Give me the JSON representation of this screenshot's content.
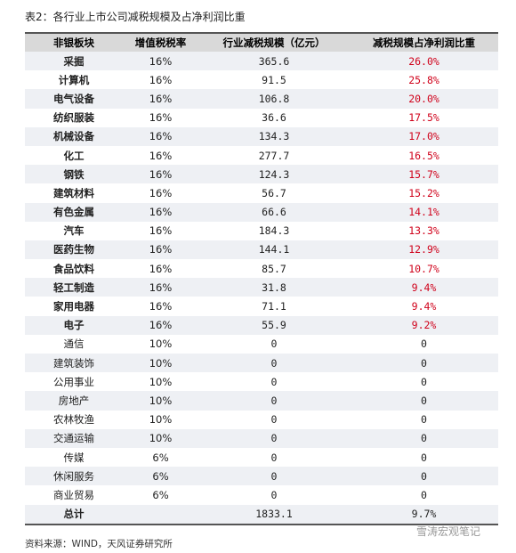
{
  "header": {
    "title": "表2：各行业上市公司减税规模及占净利润比重"
  },
  "table": {
    "columns": [
      "非银板块",
      "增值税税率",
      "行业减税规模（亿元）",
      "减税规模占净利润比重"
    ],
    "rows": [
      [
        "采掘",
        "16%",
        "365.6",
        "26.0%"
      ],
      [
        "计算机",
        "16%",
        "91.5",
        "25.8%"
      ],
      [
        "电气设备",
        "16%",
        "106.8",
        "20.0%"
      ],
      [
        "纺织服装",
        "16%",
        "36.6",
        "17.5%"
      ],
      [
        "机械设备",
        "16%",
        "134.3",
        "17.0%"
      ],
      [
        "化工",
        "16%",
        "277.7",
        "16.5%"
      ],
      [
        "钢铁",
        "16%",
        "124.3",
        "15.7%"
      ],
      [
        "建筑材料",
        "16%",
        "56.7",
        "15.2%"
      ],
      [
        "有色金属",
        "16%",
        "66.6",
        "14.1%"
      ],
      [
        "汽车",
        "16%",
        "184.3",
        "13.3%"
      ],
      [
        "医药生物",
        "16%",
        "144.1",
        "12.9%"
      ],
      [
        "食品饮料",
        "16%",
        "85.7",
        "10.7%"
      ],
      [
        "轻工制造",
        "16%",
        "31.8",
        "9.4%"
      ],
      [
        "家用电器",
        "16%",
        "71.1",
        "9.4%"
      ],
      [
        "电子",
        "16%",
        "55.9",
        "9.2%"
      ],
      [
        "通信",
        "10%",
        "0",
        "0"
      ],
      [
        "建筑装饰",
        "10%",
        "0",
        "0"
      ],
      [
        "公用事业",
        "10%",
        "0",
        "0"
      ],
      [
        "房地产",
        "10%",
        "0",
        "0"
      ],
      [
        "农林牧渔",
        "10%",
        "0",
        "0"
      ],
      [
        "交通运输",
        "10%",
        "0",
        "0"
      ],
      [
        "传媒",
        "6%",
        "0",
        "0"
      ],
      [
        "休闲服务",
        "6%",
        "0",
        "0"
      ],
      [
        "商业贸易",
        "6%",
        "0",
        "0"
      ],
      [
        "总计",
        "",
        "1833.1",
        "9.7%"
      ]
    ]
  },
  "footer": {
    "source": "资料来源：WIND，天风证券研究所",
    "watermark": "雪涛宏观笔记"
  }
}
